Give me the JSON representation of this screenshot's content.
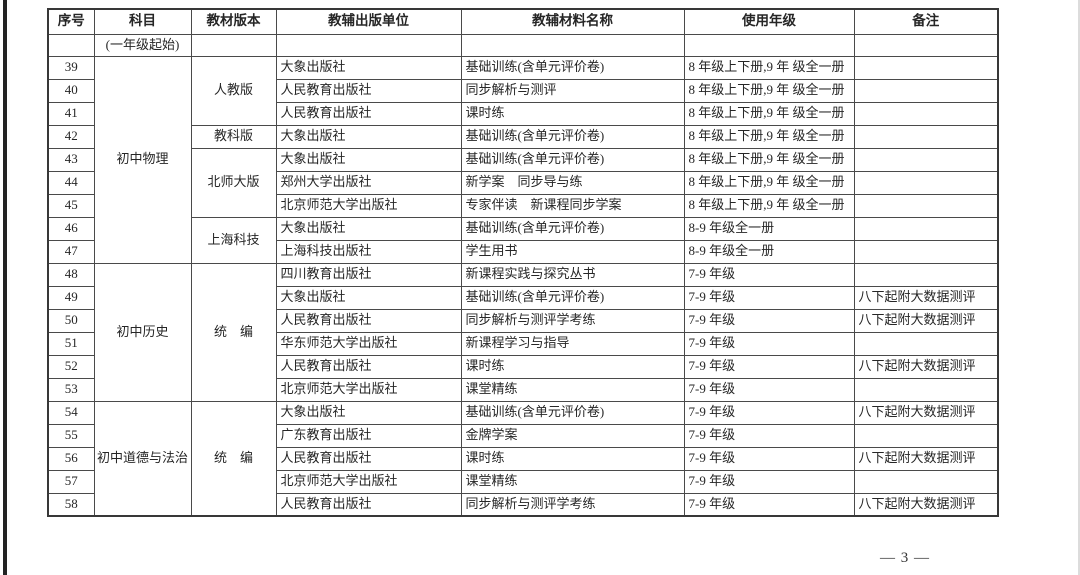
{
  "page": {
    "page_number": "— 3 —"
  },
  "table": {
    "headers": [
      "序号",
      "科目",
      "教材版本",
      "教辅出版单位",
      "教辅材料名称",
      "使用年级",
      "备注"
    ],
    "subheader_note": "(一年级起始)",
    "rows": [
      {
        "seq": "39",
        "subject": {
          "text": "初中物理",
          "rowspan": 9
        },
        "version": {
          "text": "人教版",
          "rowspan": 3
        },
        "publisher": "大象出版社",
        "material": "基础训练(含单元评价卷)",
        "grade": "8 年级上下册,9 年 级全一册",
        "remark": ""
      },
      {
        "seq": "40",
        "publisher": "人民教育出版社",
        "material": "同步解析与测评",
        "grade": "8 年级上下册,9 年 级全一册",
        "remark": ""
      },
      {
        "seq": "41",
        "publisher": "人民教育出版社",
        "material": "课时练",
        "grade": "8 年级上下册,9 年 级全一册",
        "remark": ""
      },
      {
        "seq": "42",
        "version": {
          "text": "教科版",
          "rowspan": 1
        },
        "publisher": "大象出版社",
        "material": "基础训练(含单元评价卷)",
        "grade": "8 年级上下册,9 年 级全一册",
        "remark": ""
      },
      {
        "seq": "43",
        "version": {
          "text": "北师大版",
          "rowspan": 3
        },
        "publisher": "大象出版社",
        "material": "基础训练(含单元评价卷)",
        "grade": "8 年级上下册,9 年 级全一册",
        "remark": ""
      },
      {
        "seq": "44",
        "publisher": "郑州大学出版社",
        "material": "新学案　同步导与练",
        "grade": "8 年级上下册,9 年 级全一册",
        "remark": ""
      },
      {
        "seq": "45",
        "publisher": "北京师范大学出版社",
        "material": "专家伴读　新课程同步学案",
        "grade": "8 年级上下册,9 年 级全一册",
        "remark": ""
      },
      {
        "seq": "46",
        "version": {
          "text": "上海科技",
          "rowspan": 2
        },
        "publisher": "大象出版社",
        "material": "基础训练(含单元评价卷)",
        "grade": "8-9 年级全一册",
        "remark": ""
      },
      {
        "seq": "47",
        "publisher": "上海科技出版社",
        "material": "学生用书",
        "grade": "8-9 年级全一册",
        "remark": ""
      },
      {
        "seq": "48",
        "subject": {
          "text": "初中历史",
          "rowspan": 6
        },
        "version": {
          "text": "统　编",
          "rowspan": 6
        },
        "publisher": "四川教育出版社",
        "material": "新课程实践与探究丛书",
        "grade": "7-9 年级",
        "remark": ""
      },
      {
        "seq": "49",
        "publisher": "大象出版社",
        "material": "基础训练(含单元评价卷)",
        "grade": "7-9 年级",
        "remark": "八下起附大数据测评"
      },
      {
        "seq": "50",
        "publisher": "人民教育出版社",
        "material": "同步解析与测评学考练",
        "grade": "7-9 年级",
        "remark": "八下起附大数据测评"
      },
      {
        "seq": "51",
        "publisher": "华东师范大学出版社",
        "material": "新课程学习与指导",
        "grade": "7-9 年级",
        "remark": ""
      },
      {
        "seq": "52",
        "publisher": "人民教育出版社",
        "material": "课时练",
        "grade": "7-9 年级",
        "remark": "八下起附大数据测评"
      },
      {
        "seq": "53",
        "publisher": "北京师范大学出版社",
        "material": "课堂精练",
        "grade": "7-9 年级",
        "remark": ""
      },
      {
        "seq": "54",
        "subject": {
          "text": "初中道德与法治",
          "rowspan": 5
        },
        "version": {
          "text": "统　编",
          "rowspan": 5
        },
        "publisher": "大象出版社",
        "material": "基础训练(含单元评价卷)",
        "grade": "7-9 年级",
        "remark": "八下起附大数据测评"
      },
      {
        "seq": "55",
        "publisher": "广东教育出版社",
        "material": "金牌学案",
        "grade": "7-9 年级",
        "remark": ""
      },
      {
        "seq": "56",
        "publisher": "人民教育出版社",
        "material": "课时练",
        "grade": "7-9 年级",
        "remark": "八下起附大数据测评"
      },
      {
        "seq": "57",
        "publisher": "北京师范大学出版社",
        "material": "课堂精练",
        "grade": "7-9 年级",
        "remark": ""
      },
      {
        "seq": "58",
        "publisher": "人民教育出版社",
        "material": "同步解析与测评学考练",
        "grade": "7-9 年级",
        "remark": "八下起附大数据测评"
      }
    ]
  }
}
